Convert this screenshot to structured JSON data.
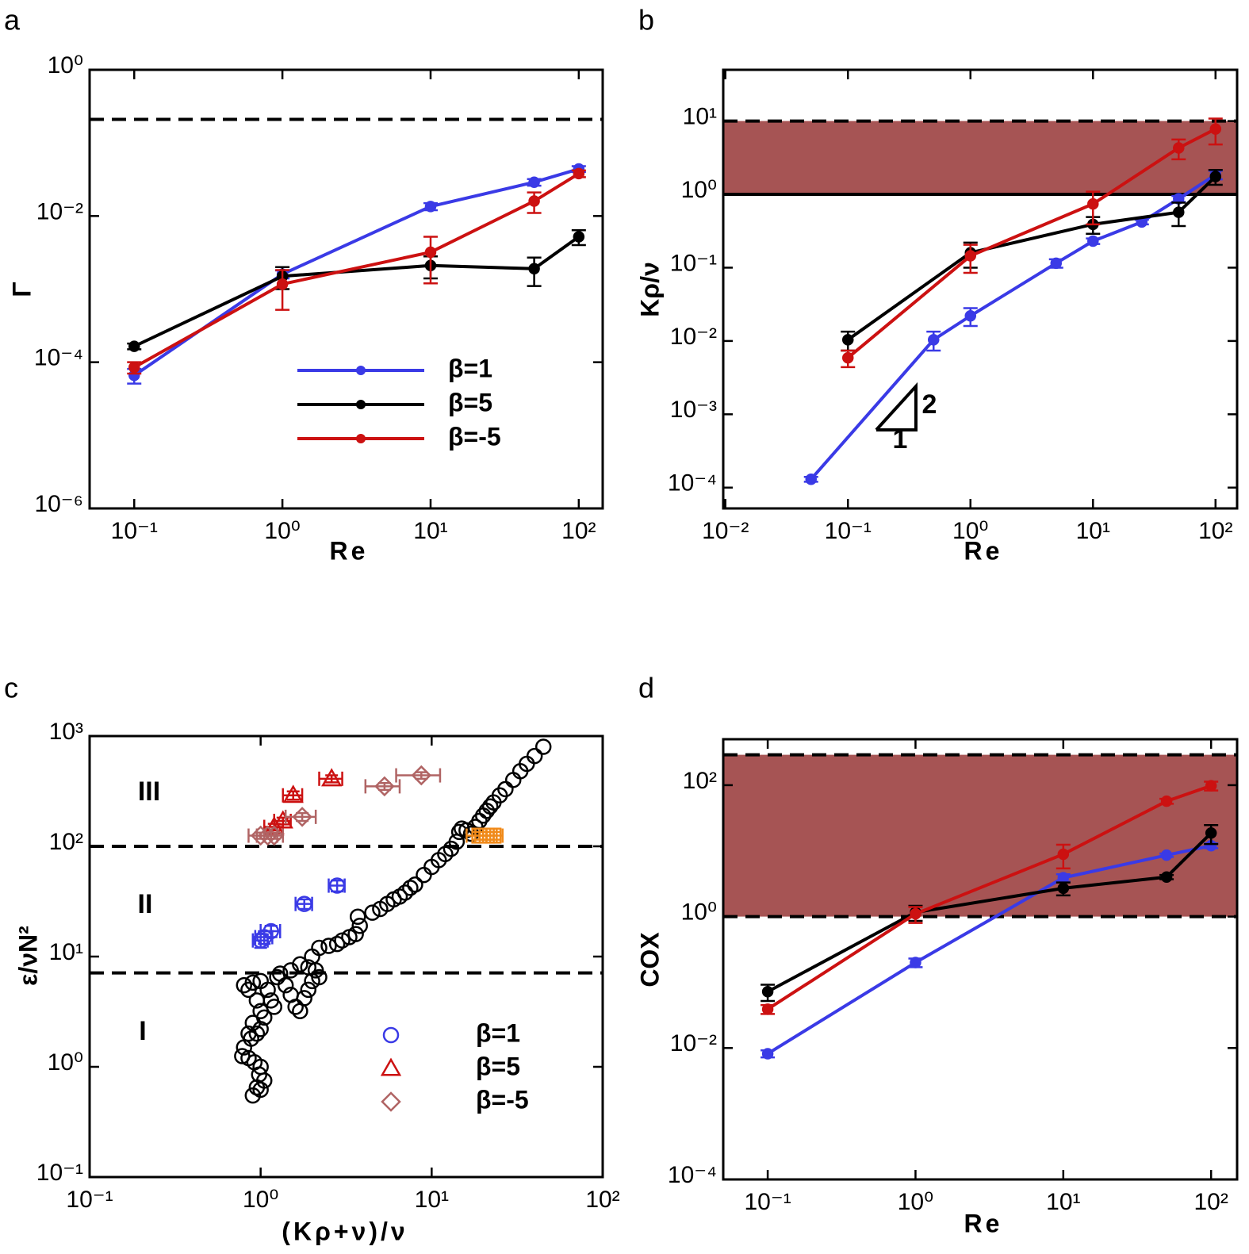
{
  "chart_data": [
    {
      "type": "line",
      "panel": "a",
      "xlabel": "Re",
      "ylabel": "Γ",
      "xscale": "log",
      "yscale": "log",
      "xlim": [
        0.05,
        145
      ],
      "ylim": [
        1e-06,
        1
      ],
      "xticks": [
        {
          "value": 0.1,
          "label": "10⁻¹"
        },
        {
          "value": 1,
          "label": "10⁰"
        },
        {
          "value": 10,
          "label": "10¹"
        },
        {
          "value": 100,
          "label": "10²"
        }
      ],
      "yticks": [
        {
          "value": 1e-06,
          "label": "10⁻⁶"
        },
        {
          "value": 0.0001,
          "label": "10⁻⁴"
        },
        {
          "value": 0.01,
          "label": "10⁻²"
        },
        {
          "value": 1,
          "label": "10⁰"
        }
      ],
      "hlines": [
        {
          "value": 0.21,
          "style": "dashed"
        }
      ],
      "legend": "lower right",
      "series": [
        {
          "name": "β=1",
          "color": "#3a3ae6",
          "x": [
            0.1,
            1,
            10,
            50,
            100
          ],
          "values": [
            6.6e-05,
            0.0016,
            0.0135,
            0.029,
            0.044
          ],
          "errors": [
            1.5e-05,
            0.0002,
            0.0015,
            0.003,
            0.004
          ]
        },
        {
          "name": "β=5",
          "color": "#000000",
          "x": [
            0.1,
            1,
            10,
            50,
            100
          ],
          "values": [
            0.000165,
            0.0015,
            0.0021,
            0.0019,
            0.0052
          ],
          "errors": [
            1.5e-05,
            0.0005,
            0.0007,
            0.0008,
            0.0012
          ]
        },
        {
          "name": "β=-5",
          "color": "#cc1111",
          "x": [
            0.1,
            1,
            10,
            50,
            100
          ],
          "values": [
            8.5e-05,
            0.00117,
            0.0032,
            0.016,
            0.038
          ],
          "errors": [
            1.5e-05,
            0.00065,
            0.002,
            0.005,
            0.004
          ]
        }
      ]
    },
    {
      "type": "line",
      "panel": "b",
      "xlabel": "Re",
      "ylabel": "Kρ/ν",
      "xscale": "log",
      "yscale": "log",
      "xlim": [
        0.0096,
        150
      ],
      "ylim": [
        5.2e-05,
        50
      ],
      "xticks": [
        {
          "value": 0.01,
          "label": "10⁻²"
        },
        {
          "value": 0.1,
          "label": "10⁻¹"
        },
        {
          "value": 1,
          "label": "10⁰"
        },
        {
          "value": 10,
          "label": "10¹"
        },
        {
          "value": 100,
          "label": "10²"
        }
      ],
      "yticks": [
        {
          "value": 0.0001,
          "label": "10⁻⁴"
        },
        {
          "value": 0.001,
          "label": "10⁻³"
        },
        {
          "value": 0.01,
          "label": "10⁻²"
        },
        {
          "value": 0.1,
          "label": "10⁻¹"
        },
        {
          "value": 1,
          "label": "10⁰"
        },
        {
          "value": 10,
          "label": "10¹"
        }
      ],
      "band": [
        1,
        10
      ],
      "band_color": "#a65454",
      "hlines": [
        {
          "value": 10,
          "style": "dashed"
        },
        {
          "value": 1,
          "style": "solid"
        }
      ],
      "annotations": [
        "2",
        "1"
      ],
      "series": [
        {
          "color": "#3a3ae6",
          "x": [
            0.05,
            0.5,
            1,
            5,
            10,
            25,
            50,
            100
          ],
          "values": [
            0.00013,
            0.0104,
            0.022,
            0.115,
            0.23,
            0.42,
            0.87,
            1.85
          ],
          "errors": [
            1e-05,
            0.003,
            0.006,
            0.015,
            0.02,
            0.03,
            0.08,
            0.25
          ]
        },
        {
          "color": "#000000",
          "x": [
            0.1,
            1,
            10,
            50,
            100
          ],
          "values": [
            0.0104,
            0.16,
            0.39,
            0.57,
            1.75
          ],
          "errors": [
            0.003,
            0.06,
            0.1,
            0.2,
            0.4
          ]
        },
        {
          "color": "#cc1111",
          "x": [
            0.1,
            1,
            10,
            50,
            100
          ],
          "values": [
            0.0059,
            0.145,
            0.74,
            4.3,
            7.8
          ],
          "errors": [
            0.0015,
            0.06,
            0.35,
            1.3,
            3
          ]
        }
      ]
    },
    {
      "type": "scatter",
      "panel": "c",
      "xlabel": "(Kρ+ν)/ν",
      "ylabel": "ε/νN²",
      "xscale": "log",
      "yscale": "log",
      "xlim": [
        0.1,
        100
      ],
      "ylim": [
        0.1,
        1000
      ],
      "xticks": [
        {
          "value": 0.1,
          "label": "10⁻¹"
        },
        {
          "value": 1,
          "label": "10⁰"
        },
        {
          "value": 10,
          "label": "10¹"
        },
        {
          "value": 100,
          "label": "10²"
        }
      ],
      "yticks": [
        {
          "value": 0.1,
          "label": "10⁻¹"
        },
        {
          "value": 1,
          "label": "10⁰"
        },
        {
          "value": 10,
          "label": "10¹"
        },
        {
          "value": 100,
          "label": "10²"
        },
        {
          "value": 1000,
          "label": "10³"
        }
      ],
      "hlines": [
        {
          "value": 100,
          "style": "dashed"
        },
        {
          "value": 7.1,
          "style": "dashed"
        }
      ],
      "annotations": [
        "III",
        "II",
        "I"
      ],
      "legend": "lower right",
      "series": [
        {
          "color": "#000000",
          "marker": "circle",
          "x": [
            0.9,
            0.95,
            1.0,
            1.05,
            0.98,
            1.0,
            0.92,
            0.85,
            0.78,
            0.8,
            0.88,
            0.95,
            1.0,
            0.9,
            0.85,
            1.05,
            1.0,
            0.95,
            0.85,
            0.8,
            0.9,
            1.0,
            1.1,
            1.15,
            1.2,
            1.25,
            1.3,
            1.4,
            1.5,
            1.6,
            1.7,
            1.8,
            1.9,
            2.0,
            2.1,
            1.5,
            1.7,
            1.9,
            2.2,
            2.0,
            2.2,
            2.5,
            2.8,
            3.0,
            3.3,
            3.6,
            3.8,
            3.7,
            4.5,
            5,
            5.5,
            6,
            6.5,
            7,
            7.5,
            8,
            9,
            10,
            11,
            12,
            13,
            14,
            14.5,
            15,
            16,
            17,
            18,
            19,
            20,
            21,
            22,
            23,
            25,
            27,
            30,
            33,
            36,
            40,
            45
          ],
          "values": [
            0.55,
            0.65,
            0.62,
            0.75,
            0.85,
            1.0,
            1.1,
            1.2,
            1.25,
            1.5,
            1.8,
            2.0,
            2.2,
            2.5,
            2.0,
            2.8,
            3.2,
            4.0,
            5.0,
            5.5,
            5.8,
            6.0,
            5.0,
            4.0,
            3.5,
            6.5,
            7.0,
            5.5,
            4.5,
            3.5,
            3.2,
            4.2,
            5.0,
            6.0,
            7.5,
            7.5,
            8.5,
            8.0,
            6.5,
            10,
            12,
            12.5,
            13,
            14,
            15,
            16,
            19,
            23,
            25,
            27,
            30,
            33,
            35,
            38,
            42,
            45,
            55,
            65,
            75,
            85,
            95,
            110,
            135,
            145,
            140,
            130,
            150,
            170,
            190,
            210,
            230,
            250,
            290,
            330,
            400,
            480,
            560,
            660,
            800
          ]
        },
        {
          "name": "β=1",
          "color": "#3a3ae6",
          "marker": "circle",
          "x": [
            1.0,
            1.05,
            1.15,
            1.8,
            2.8
          ],
          "values": [
            14,
            15,
            17,
            30,
            44
          ],
          "xerr": [
            0.1,
            0.12,
            0.15,
            0.2,
            0.3
          ],
          "yerr": [
            2,
            2,
            2,
            3,
            5
          ]
        },
        {
          "name": "β=5",
          "color": "#cc1111",
          "marker": "triangle",
          "x": [
            1.2,
            1.35,
            1.55,
            2.6
          ],
          "values": [
            150,
            170,
            290,
            410
          ],
          "xerr": [
            0.15,
            0.15,
            0.2,
            0.4
          ],
          "yerr": [
            10,
            12,
            25,
            30
          ]
        },
        {
          "name": "β=-5",
          "color": "#b06464",
          "marker": "diamond",
          "x": [
            1.0,
            1.1,
            1.2,
            1.75,
            5.3,
            8.7
          ],
          "values": [
            125,
            125,
            125,
            185,
            350,
            440
          ],
          "xerr": [
            0.15,
            0.15,
            0.15,
            0.35,
            1.2,
            2.5
          ],
          "yerr": [
            8,
            8,
            8,
            15,
            25,
            30
          ]
        },
        {
          "color": "#f08a1a",
          "marker": "square",
          "x": [
            19,
            21,
            23
          ],
          "values": [
            125,
            125,
            125
          ],
          "xerr": [
            3,
            3,
            3
          ],
          "yerr": [
            10,
            10,
            10
          ]
        }
      ]
    },
    {
      "type": "line",
      "panel": "d",
      "xlabel": "Re",
      "ylabel": "COX",
      "xscale": "log",
      "yscale": "log",
      "xlim": [
        0.05,
        150
      ],
      "ylim": [
        0.0001,
        500
      ],
      "xticks": [
        {
          "value": 0.1,
          "label": "10⁻¹"
        },
        {
          "value": 1,
          "label": "10⁰"
        },
        {
          "value": 10,
          "label": "10¹"
        },
        {
          "value": 100,
          "label": "10²"
        }
      ],
      "yticks": [
        {
          "value": 0.0001,
          "label": "10⁻⁴"
        },
        {
          "value": 0.01,
          "label": "10⁻²"
        },
        {
          "value": 1,
          "label": "10⁰"
        },
        {
          "value": 100,
          "label": "10²"
        }
      ],
      "band": [
        1,
        290
      ],
      "band_color": "#a65454",
      "hlines": [
        {
          "value": 290,
          "style": "dashed"
        },
        {
          "value": 1,
          "style": "dashed"
        }
      ],
      "series": [
        {
          "color": "#3a3ae6",
          "x": [
            0.1,
            1,
            10,
            50,
            100
          ],
          "values": [
            0.0082,
            0.2,
            3.9,
            8.6,
            12
          ],
          "errors": [
            0.001,
            0.03,
            0.5,
            0.5,
            1
          ]
        },
        {
          "color": "#000000",
          "x": [
            0.1,
            1,
            10,
            50,
            100
          ],
          "values": [
            0.072,
            1.16,
            2.7,
            4.0,
            18.7
          ],
          "errors": [
            0.02,
            0.3,
            0.6,
            0.3,
            6
          ]
        },
        {
          "color": "#cc1111",
          "x": [
            0.1,
            1,
            10,
            50,
            100
          ],
          "values": [
            0.039,
            1.1,
            8.9,
            57,
            98
          ],
          "errors": [
            0.006,
            0.3,
            3.5,
            5,
            15
          ]
        }
      ]
    }
  ]
}
